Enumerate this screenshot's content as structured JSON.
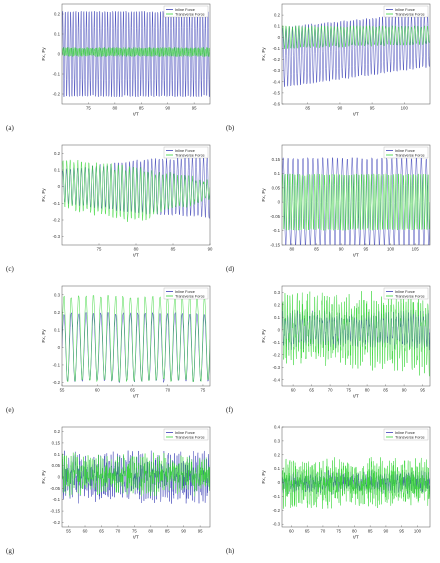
{
  "colors": {
    "inline": "#3a3fb5",
    "transverse": "#38d638",
    "frame": "#555555"
  },
  "chart_data": [
    {
      "letter": "(a)",
      "type": "line",
      "xlabel": "t/T",
      "ylabel": "Fx, Fy",
      "grid": false,
      "legend": "top-right",
      "xlim": [
        70,
        98
      ],
      "ylim": [
        -0.25,
        0.25
      ],
      "xticks": [
        75,
        80,
        85,
        90,
        95
      ],
      "yticks": [
        -0.2,
        -0.1,
        0,
        0.1,
        0.2
      ],
      "xtick_labels": [
        "75",
        "80",
        "85",
        "90",
        "95"
      ],
      "ytick_labels": [
        "-0.2",
        "-0.1",
        "0",
        "0.1",
        "0.2"
      ],
      "series": [
        {
          "name": "Inline Force",
          "color": "inline",
          "x": [
            70,
            98
          ],
          "y_mean": [
            0,
            0
          ],
          "amp": [
            0.22,
            0.22
          ],
          "noise": 0.005,
          "cycles": 56
        },
        {
          "name": "Transverse Force",
          "color": "transverse",
          "x": [
            70,
            98
          ],
          "y_mean": [
            0.01,
            0.01
          ],
          "amp": [
            0.02,
            0.02
          ],
          "noise": 0.005,
          "cycles": 112
        }
      ]
    },
    {
      "letter": "(b)",
      "type": "line",
      "xlabel": "t/T",
      "ylabel": "Fx, Fy",
      "grid": false,
      "legend": "top-right",
      "xlim": [
        81,
        104
      ],
      "ylim": [
        -0.6,
        0.3
      ],
      "xticks": [
        85,
        90,
        95,
        100
      ],
      "yticks": [
        -0.6,
        -0.5,
        -0.4,
        -0.3,
        -0.2,
        -0.1,
        0,
        0.1,
        0.2
      ],
      "xtick_labels": [
        "85",
        "90",
        "95",
        "100"
      ],
      "ytick_labels": [
        "-0.6",
        "-0.5",
        "-0.4",
        "-0.3",
        "-0.2",
        "-0.1",
        "0",
        "0.1",
        "0.2"
      ],
      "series": [
        {
          "name": "Inline Force",
          "color": "inline",
          "x": [
            81,
            104
          ],
          "y_mean": [
            -0.18,
            -0.02
          ],
          "amp": [
            0.28,
            0.25
          ],
          "noise": 0.01,
          "cycles": 46
        },
        {
          "name": "Transverse Force",
          "color": "transverse",
          "x": [
            81,
            104
          ],
          "y_mean": [
            0.0,
            0.02
          ],
          "amp": [
            0.1,
            0.08
          ],
          "noise": 0.01,
          "cycles": 46
        }
      ]
    },
    {
      "letter": "(c)",
      "type": "line",
      "xlabel": "t/T",
      "ylabel": "Fx, Fy",
      "grid": false,
      "legend": "top-right",
      "xlim": [
        70,
        90
      ],
      "ylim": [
        -0.35,
        0.25
      ],
      "xticks": [
        75,
        80,
        85,
        90
      ],
      "yticks": [
        -0.3,
        -0.2,
        -0.1,
        0,
        0.1,
        0.2
      ],
      "xtick_labels": [
        "75",
        "80",
        "85",
        "90"
      ],
      "ytick_labels": [
        "-0.3",
        "-0.2",
        "-0.1",
        "0",
        "0.1",
        "0.2"
      ],
      "series": [
        {
          "name": "Inline Force",
          "color": "inline",
          "x": [
            70,
            80,
            90
          ],
          "y_mean": [
            0.0,
            0.0,
            0.0
          ],
          "amp": [
            0.1,
            0.16,
            0.19
          ],
          "noise": 0.01,
          "cycles": 40
        },
        {
          "name": "Transverse Force",
          "color": "transverse",
          "x": [
            70,
            80,
            90
          ],
          "y_mean": [
            0.02,
            -0.05,
            -0.02
          ],
          "amp": [
            0.14,
            0.16,
            0.05
          ],
          "noise": 0.02,
          "cycles": 40
        }
      ]
    },
    {
      "letter": "(d)",
      "type": "line",
      "xlabel": "t/T",
      "ylabel": "Fx, Fy",
      "grid": false,
      "legend": "top-right",
      "xlim": [
        78,
        108
      ],
      "ylim": [
        -0.15,
        0.2
      ],
      "xticks": [
        80,
        85,
        90,
        95,
        100,
        105
      ],
      "yticks": [
        -0.15,
        -0.1,
        -0.05,
        0,
        0.05,
        0.1,
        0.15
      ],
      "xtick_labels": [
        "80",
        "85",
        "90",
        "95",
        "100",
        "105"
      ],
      "ytick_labels": [
        "-0.15",
        "-0.1",
        "-0.05",
        "0",
        "0.05",
        "0.1",
        "0.15"
      ],
      "series": [
        {
          "name": "Inline Force",
          "color": "inline",
          "x": [
            78,
            108
          ],
          "y_mean": [
            0,
            0
          ],
          "amp": [
            0.16,
            0.16
          ],
          "noise": 0.004,
          "cycles": 30
        },
        {
          "name": "Transverse Force",
          "color": "transverse",
          "x": [
            78,
            108
          ],
          "y_mean": [
            0,
            0
          ],
          "amp": [
            0.1,
            0.1
          ],
          "noise": 0.004,
          "cycles": 60
        }
      ]
    },
    {
      "letter": "(e)",
      "type": "line",
      "xlabel": "t/T",
      "ylabel": "Fx, Fy",
      "grid": false,
      "legend": "top-right",
      "xlim": [
        55,
        76
      ],
      "ylim": [
        -0.22,
        0.35
      ],
      "xticks": [
        55,
        60,
        65,
        70,
        75
      ],
      "yticks": [
        -0.2,
        -0.1,
        0,
        0.1,
        0.2,
        0.3
      ],
      "xtick_labels": [
        "55",
        "60",
        "65",
        "70",
        "75"
      ],
      "ytick_labels": [
        "-0.2",
        "-0.1",
        "0",
        "0.1",
        "0.2",
        "0.3"
      ],
      "series": [
        {
          "name": "Inline Force",
          "color": "inline",
          "x": [
            55,
            76
          ],
          "y_mean": [
            0,
            0
          ],
          "amp": [
            0.2,
            0.2
          ],
          "noise": 0.01,
          "cycles": 20
        },
        {
          "name": "Transverse Force",
          "color": "transverse",
          "x": [
            55,
            76
          ],
          "y_mean": [
            0.05,
            0.05
          ],
          "amp": [
            0.25,
            0.25
          ],
          "noise": 0.01,
          "cycles": 20
        }
      ]
    },
    {
      "letter": "(f)",
      "type": "line",
      "xlabel": "t/T",
      "ylabel": "Fx, Fy",
      "grid": false,
      "legend": "top-right",
      "xlim": [
        57,
        97
      ],
      "ylim": [
        -0.45,
        0.35
      ],
      "xticks": [
        60,
        65,
        70,
        75,
        80,
        85,
        90,
        95
      ],
      "yticks": [
        -0.4,
        -0.3,
        -0.2,
        -0.1,
        0,
        0.1,
        0.2,
        0.3
      ],
      "xtick_labels": [
        "60",
        "65",
        "70",
        "75",
        "80",
        "85",
        "90",
        "95"
      ],
      "ytick_labels": [
        "-0.4",
        "-0.3",
        "-0.2",
        "-0.1",
        "0",
        "0.1",
        "0.2",
        "0.3"
      ],
      "series": [
        {
          "name": "Inline Force",
          "color": "inline",
          "x": [
            57,
            77,
            97
          ],
          "y_mean": [
            0.0,
            0.0,
            0.0
          ],
          "amp": [
            0.12,
            0.1,
            0.12
          ],
          "noise": 0.05,
          "cycles": 60
        },
        {
          "name": "Transverse Force",
          "color": "transverse",
          "x": [
            57,
            77,
            97
          ],
          "y_mean": [
            0.0,
            0.0,
            -0.03
          ],
          "amp": [
            0.2,
            0.2,
            0.25
          ],
          "noise": 0.12,
          "cycles": 60
        }
      ]
    },
    {
      "letter": "(g)",
      "type": "line",
      "xlabel": "t/T",
      "ylabel": "Fx, Fy",
      "grid": false,
      "legend": "top-right",
      "xlim": [
        53,
        98
      ],
      "ylim": [
        -0.22,
        0.22
      ],
      "xticks": [
        55,
        60,
        65,
        70,
        75,
        80,
        85,
        90,
        95
      ],
      "yticks": [
        -0.2,
        -0.15,
        -0.1,
        -0.05,
        0,
        0.05,
        0.1,
        0.15,
        0.2
      ],
      "xtick_labels": [
        "55",
        "60",
        "65",
        "70",
        "75",
        "80",
        "85",
        "90",
        "95"
      ],
      "ytick_labels": [
        "-0.2",
        "-0.15",
        "-0.1",
        "-0.05",
        "0",
        "0.05",
        "0.1",
        "0.15",
        "0.2"
      ],
      "series": [
        {
          "name": "Inline Force",
          "color": "inline",
          "x": [
            53,
            98
          ],
          "y_mean": [
            0.0,
            0.0
          ],
          "amp": [
            0.05,
            0.05
          ],
          "noise": 0.07,
          "cycles": 70
        },
        {
          "name": "Transverse Force",
          "color": "transverse",
          "x": [
            53,
            98
          ],
          "y_mean": [
            0.01,
            0.01
          ],
          "amp": [
            0.04,
            0.04
          ],
          "noise": 0.06,
          "cycles": 70
        }
      ]
    },
    {
      "letter": "(h)",
      "type": "line",
      "xlabel": "t/T",
      "ylabel": "Fx, Fy",
      "grid": false,
      "legend": "top-right",
      "xlim": [
        57,
        104
      ],
      "ylim": [
        -0.32,
        0.4
      ],
      "xticks": [
        60,
        65,
        70,
        75,
        80,
        85,
        90,
        95,
        100
      ],
      "yticks": [
        -0.3,
        -0.2,
        -0.1,
        0,
        0.1,
        0.2,
        0.3,
        0.4
      ],
      "xtick_labels": [
        "60",
        "65",
        "70",
        "75",
        "80",
        "85",
        "90",
        "95",
        "100"
      ],
      "ytick_labels": [
        "-0.3",
        "-0.2",
        "-0.1",
        "0",
        "0.1",
        "0.2",
        "0.3",
        "0.4"
      ],
      "series": [
        {
          "name": "Inline Force",
          "color": "inline",
          "x": [
            57,
            104
          ],
          "y_mean": [
            0.0,
            0.0
          ],
          "amp": [
            0.04,
            0.04
          ],
          "noise": 0.05,
          "cycles": 80
        },
        {
          "name": "Transverse Force",
          "color": "transverse",
          "x": [
            57,
            104
          ],
          "y_mean": [
            0.0,
            0.0
          ],
          "amp": [
            0.08,
            0.06
          ],
          "noise": 0.12,
          "cycles": 80
        }
      ]
    }
  ]
}
